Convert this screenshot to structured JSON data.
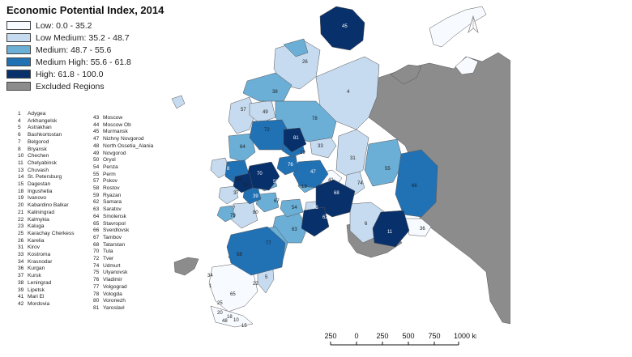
{
  "title": "Economic Potential Index, 2014",
  "legend": [
    {
      "label": "Low: 0.0 - 35.2",
      "color": "#f7fbff"
    },
    {
      "label": "Low Medium: 35.2 - 48.7",
      "color": "#c6dbef"
    },
    {
      "label": "Medium: 48.7 - 55.6",
      "color": "#6baed6"
    },
    {
      "label": "Medium High: 55.6 - 61.8",
      "color": "#2171b5"
    },
    {
      "label": "High: 61.8 - 100.0",
      "color": "#08306b"
    },
    {
      "label": "Excluded Regions",
      "color": "#8c8c8c"
    }
  ],
  "regions_col1": [
    {
      "code": "1",
      "name": "Adygea"
    },
    {
      "code": "4",
      "name": "Arkhangelsk"
    },
    {
      "code": "5",
      "name": "Astrakhan"
    },
    {
      "code": "6",
      "name": "Bashkortostan"
    },
    {
      "code": "7",
      "name": "Belgorod"
    },
    {
      "code": "8",
      "name": "Bryansk"
    },
    {
      "code": "10",
      "name": "Chechen"
    },
    {
      "code": "11",
      "name": "Chelyabinsk"
    },
    {
      "code": "13",
      "name": "Chuvash"
    },
    {
      "code": "14",
      "name": "St. Petersburg"
    },
    {
      "code": "15",
      "name": "Dagestan"
    },
    {
      "code": "18",
      "name": "Ingushetia"
    },
    {
      "code": "19",
      "name": "Ivanovo"
    },
    {
      "code": "20",
      "name": "Kabardino Balkar"
    },
    {
      "code": "21",
      "name": "Kaliningrad"
    },
    {
      "code": "22",
      "name": "Kalmykia"
    },
    {
      "code": "23",
      "name": "Kaluga"
    },
    {
      "code": "25",
      "name": "Karachay Cherkess"
    },
    {
      "code": "26",
      "name": "Karelia"
    },
    {
      "code": "31",
      "name": "Kirov"
    },
    {
      "code": "33",
      "name": "Kostroma"
    },
    {
      "code": "34",
      "name": "Krasnodar"
    },
    {
      "code": "36",
      "name": "Kurgan"
    },
    {
      "code": "37",
      "name": "Kursk"
    },
    {
      "code": "38",
      "name": "Leningrad"
    },
    {
      "code": "39",
      "name": "Lipetsk"
    },
    {
      "code": "41",
      "name": "Mari El"
    },
    {
      "code": "42",
      "name": "Mordovia"
    }
  ],
  "regions_col2": [
    {
      "code": "43",
      "name": "Moscow"
    },
    {
      "code": "44",
      "name": "Moscow Ob"
    },
    {
      "code": "45",
      "name": "Murmansk"
    },
    {
      "code": "47",
      "name": "Nizhny Novgorod"
    },
    {
      "code": "48",
      "name": "North Ossetia_Alania"
    },
    {
      "code": "49",
      "name": "Novgorod"
    },
    {
      "code": "50",
      "name": "Oryol"
    },
    {
      "code": "54",
      "name": "Penza"
    },
    {
      "code": "55",
      "name": "Perm"
    },
    {
      "code": "57",
      "name": "Pskov"
    },
    {
      "code": "58",
      "name": "Rostov"
    },
    {
      "code": "59",
      "name": "Ryazan"
    },
    {
      "code": "62",
      "name": "Samara"
    },
    {
      "code": "63",
      "name": "Saratov"
    },
    {
      "code": "64",
      "name": "Smolensk"
    },
    {
      "code": "65",
      "name": "Stavropol"
    },
    {
      "code": "66",
      "name": "Sverdlovsk"
    },
    {
      "code": "67",
      "name": "Tambov"
    },
    {
      "code": "68",
      "name": "Tatarstan"
    },
    {
      "code": "70",
      "name": "Tula"
    },
    {
      "code": "72",
      "name": "Tver"
    },
    {
      "code": "74",
      "name": "Udmurt"
    },
    {
      "code": "75",
      "name": "Ulyanovsk"
    },
    {
      "code": "76",
      "name": "Vladimir"
    },
    {
      "code": "77",
      "name": "Volgograd"
    },
    {
      "code": "78",
      "name": "Vologda"
    },
    {
      "code": "80",
      "name": "Voronezh"
    },
    {
      "code": "81",
      "name": "Yaroslavl"
    }
  ],
  "map_labels": [
    {
      "text": "45"
    },
    {
      "text": "26"
    },
    {
      "text": "4"
    },
    {
      "text": "38"
    },
    {
      "text": "57"
    },
    {
      "text": "49"
    },
    {
      "text": "78"
    },
    {
      "text": "72"
    },
    {
      "text": "81"
    },
    {
      "text": "64"
    },
    {
      "text": "44"
    },
    {
      "text": "33"
    },
    {
      "text": "31"
    },
    {
      "text": "19"
    },
    {
      "text": "55"
    },
    {
      "text": "8"
    },
    {
      "text": "70"
    },
    {
      "text": "76"
    },
    {
      "text": "47"
    },
    {
      "text": "41"
    },
    {
      "text": "66"
    },
    {
      "text": "74"
    },
    {
      "text": "52"
    },
    {
      "text": "59"
    },
    {
      "text": "13"
    },
    {
      "text": "68"
    },
    {
      "text": "37"
    },
    {
      "text": "39"
    },
    {
      "text": "67"
    },
    {
      "text": "42"
    },
    {
      "text": "7"
    },
    {
      "text": "54"
    },
    {
      "text": "75"
    },
    {
      "text": "62"
    },
    {
      "text": "6"
    },
    {
      "text": "80"
    },
    {
      "text": "11"
    },
    {
      "text": "79"
    },
    {
      "text": "36"
    },
    {
      "text": "63"
    },
    {
      "text": "77"
    },
    {
      "text": "58"
    },
    {
      "text": "5"
    },
    {
      "text": "22"
    },
    {
      "text": "34"
    },
    {
      "text": "65"
    },
    {
      "text": "25"
    },
    {
      "text": "20"
    },
    {
      "text": "18"
    },
    {
      "text": "48"
    },
    {
      "text": "10"
    },
    {
      "text": "15"
    },
    {
      "text": "1"
    },
    {
      "text": "50"
    }
  ],
  "scale": {
    "ticks": [
      "250",
      "0",
      "250",
      "500",
      "750",
      "1000 km"
    ],
    "unit": "km"
  },
  "north_arrow": "north-arrow-icon"
}
